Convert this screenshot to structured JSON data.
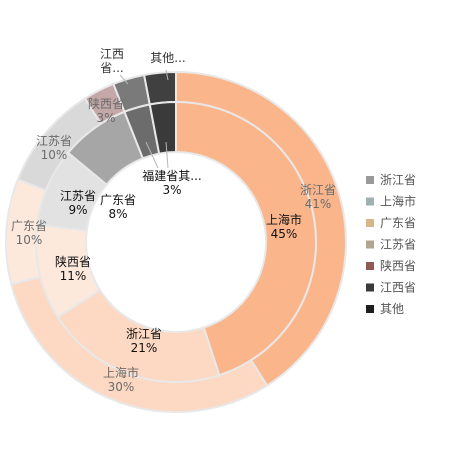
{
  "chart_data": {
    "type": "donut",
    "legend_position": "right",
    "legend": [
      {
        "label": "浙江省",
        "color": "#9a9a9a"
      },
      {
        "label": "上海市",
        "color": "#9fb1b0"
      },
      {
        "label": "广东省",
        "color": "#d6b78a"
      },
      {
        "label": "江苏省",
        "color": "#b0a58e"
      },
      {
        "label": "陕西省",
        "color": "#8f5a55"
      },
      {
        "label": "江西省",
        "color": "#3a3a3a"
      },
      {
        "label": "其他",
        "color": "#1e1e1e"
      }
    ],
    "series": [
      {
        "ring": "outer",
        "slices": [
          {
            "label": "浙江省",
            "value": 41,
            "value_text": "41%",
            "color": "#fbb58a"
          },
          {
            "label": "上海市",
            "value": 30,
            "value_text": "30%",
            "color": "#fdd8c2"
          },
          {
            "label": "广东省",
            "value": 10,
            "value_text": "10%",
            "color": "#fde8dc"
          },
          {
            "label": "江苏省",
            "value": 10,
            "value_text": "10%",
            "color": "#d9d9d9"
          },
          {
            "label": "陕西省",
            "value": 3,
            "value_text": "3%",
            "color": "#c4a8a8"
          },
          {
            "label": "江西省",
            "value": 3,
            "value_text": "",
            "color": "#7a7a7a"
          },
          {
            "label": "其他...",
            "value": 3,
            "value_text": "",
            "color": "#404040"
          }
        ]
      },
      {
        "ring": "inner",
        "slices": [
          {
            "label": "上海市",
            "value": 45,
            "value_text": "45%",
            "color": "#fbb58a"
          },
          {
            "label": "浙江省",
            "value": 21,
            "value_text": "21%",
            "color": "#fdd8c2"
          },
          {
            "label": "陕西省",
            "value": 11,
            "value_text": "11%",
            "color": "#fde8dc"
          },
          {
            "label": "江苏省",
            "value": 9,
            "value_text": "9%",
            "color": "#e2e2e2"
          },
          {
            "label": "广东省",
            "value": 8,
            "value_text": "8%",
            "color": "#a6a6a6"
          },
          {
            "label": "福建省",
            "value": 3,
            "value_text": "",
            "color": "#6c6c6c"
          },
          {
            "label": "其...",
            "value": 3,
            "value_text": "",
            "color": "#3a3a3a"
          }
        ]
      }
    ],
    "callout_labels": [
      {
        "label": "江西省...",
        "value_text": ""
      },
      {
        "label": "其他...",
        "value_text": ""
      },
      {
        "label": "福建省其...",
        "value_text": "3%"
      }
    ]
  }
}
